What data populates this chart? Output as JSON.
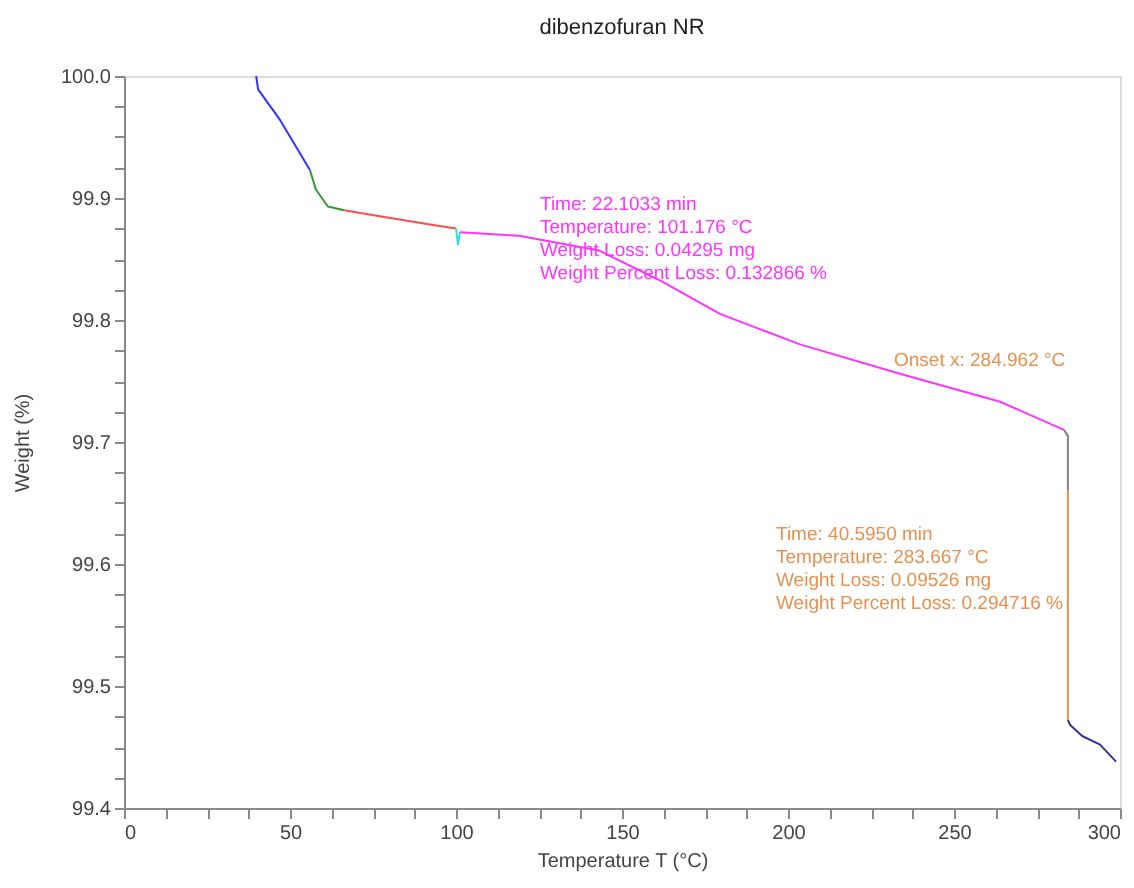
{
  "chart_data": {
    "type": "line",
    "title": "dibenzofuran NR",
    "xlabel": "Temperature T (°C)",
    "ylabel": "Weight (%)",
    "annotations": [
      "Time: 22.1033 min\nTemperature: 101.176 °C\nWeight Loss: 0.04295 mg\nWeight Percent Loss: 0.132866 %",
      "Onset x: 284.962 °C",
      "Time: 40.5950 min\nTemperature: 283.667 °C\nWeight Loss: 0.09526 mg\nWeight Percent Loss: 0.294716 %"
    ],
    "series": [
      {
        "color": "#3333ff",
        "x": [
          39.8,
          40.4,
          47,
          56
        ],
        "values": [
          100.0,
          99.989,
          99.964,
          99.923
        ]
      },
      {
        "color": "#339933",
        "x": [
          56,
          57.8,
          61.4,
          66.3
        ],
        "values": [
          99.923,
          99.907,
          99.893,
          99.89
        ]
      },
      {
        "color": "#ff4d4d",
        "x": [
          66.3,
          77,
          95,
          100
        ],
        "values": [
          99.89,
          99.885,
          99.877,
          99.875
        ]
      },
      {
        "color": "#33dddd",
        "x": [
          100,
          100.6,
          101.2
        ],
        "values": [
          99.875,
          99.862,
          99.872
        ]
      },
      {
        "color": "#ff33ff",
        "x": [
          101.2,
          119,
          143,
          161,
          179.5,
          203.6,
          233.7,
          263.9,
          283.1
        ],
        "values": [
          99.872,
          99.869,
          99.857,
          99.833,
          99.805,
          99.78,
          99.756,
          99.733,
          99.71
        ]
      },
      {
        "color": "#808080",
        "x": [
          283.1,
          284.3,
          284.3
        ],
        "values": [
          99.71,
          99.705,
          99.66
        ]
      },
      {
        "color": "#e8904f",
        "x": [
          284.3,
          284.3
        ],
        "values": [
          99.66,
          99.472
        ]
      },
      {
        "color": "#333399",
        "x": [
          284.3,
          285,
          288.6,
          294,
          298.8
        ],
        "values": [
          99.472,
          99.468,
          99.459,
          99.452,
          99.438
        ]
      }
    ],
    "xlim": [
      0,
      300
    ],
    "xticks": [
      0,
      {
        "value": 12.5,
        "label": null
      },
      {
        "value": 25,
        "label": null
      },
      {
        "value": 37.5,
        "label": null
      },
      50,
      {
        "value": 62.5,
        "label": null
      },
      {
        "value": 75,
        "label": null
      },
      {
        "value": 87.5,
        "label": null
      },
      100,
      {
        "value": 112.5,
        "label": null
      },
      {
        "value": 125,
        "label": null
      },
      {
        "value": 137.5,
        "label": null
      },
      150,
      {
        "value": 162.5,
        "label": null
      },
      {
        "value": 175,
        "label": null
      },
      {
        "value": 187.5,
        "label": null
      },
      200,
      {
        "value": 212.5,
        "label": null
      },
      {
        "value": 225,
        "label": null
      },
      {
        "value": 237.5,
        "label": null
      },
      250,
      {
        "value": 262.5,
        "label": null
      },
      {
        "value": 275,
        "label": null
      },
      {
        "value": 287.5,
        "label": null
      },
      300
    ],
    "ylim": [
      99.4,
      100.0
    ],
    "yticks": [
      {
        "value": 99.4,
        "label": "99.4"
      },
      {
        "value": 99.425,
        "label": null
      },
      {
        "value": 99.45,
        "label": null
      },
      {
        "value": 99.475,
        "label": null
      },
      {
        "value": 99.5,
        "label": "99.5"
      },
      {
        "value": 99.525,
        "label": null
      },
      {
        "value": 99.55,
        "label": null
      },
      {
        "value": 99.575,
        "label": null
      },
      {
        "value": 99.6,
        "label": "99.6"
      },
      {
        "value": 99.625,
        "label": null
      },
      {
        "value": 99.65,
        "label": null
      },
      {
        "value": 99.675,
        "label": null
      },
      {
        "value": 99.7,
        "label": "99.7"
      },
      {
        "value": 99.725,
        "label": null
      },
      {
        "value": 99.75,
        "label": null
      },
      {
        "value": 99.775,
        "label": null
      },
      {
        "value": 99.8,
        "label": "99.8"
      },
      {
        "value": 99.825,
        "label": null
      },
      {
        "value": 99.85,
        "label": null
      },
      {
        "value": 99.875,
        "label": null
      },
      {
        "value": 99.9,
        "label": "99.9"
      },
      {
        "value": 99.925,
        "label": null
      },
      {
        "value": 99.95,
        "label": null
      },
      {
        "value": 99.975,
        "label": null
      },
      {
        "value": 100.0,
        "label": "100.0"
      }
    ],
    "grid": false,
    "marker": "none",
    "line_style": "solid"
  }
}
